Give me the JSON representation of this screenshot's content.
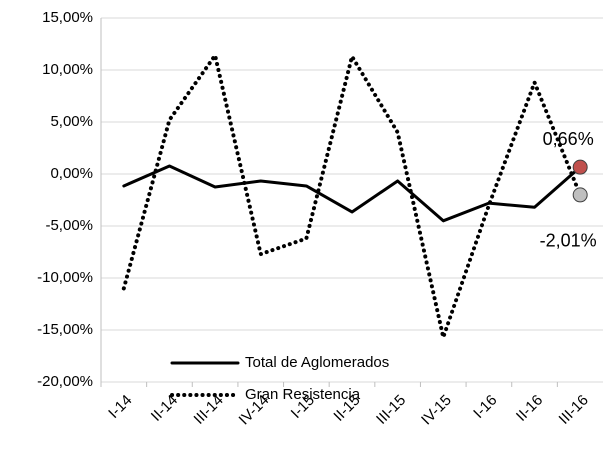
{
  "chart_data": {
    "type": "line",
    "categories": [
      "I-14",
      "II-14",
      "III-14",
      "IV-14",
      "I-15",
      "II-15",
      "III-15",
      "IV-15",
      "I-16",
      "II-16",
      "III-16"
    ],
    "series": [
      {
        "name": "Total de Aglomerados",
        "color": "#000000",
        "dash": "solid",
        "marker_color": "#c0504d",
        "values": [
          -1.15,
          0.77,
          -1.25,
          -0.67,
          -1.15,
          -3.65,
          -0.67,
          -4.5,
          -2.8,
          -3.2,
          0.66
        ],
        "value_labels": [
          null,
          null,
          null,
          null,
          null,
          null,
          null,
          null,
          null,
          null,
          "0,66%"
        ]
      },
      {
        "name": "Gran Resistencia",
        "color": "#000000",
        "dash": "dotted",
        "marker_color": "#bfbfbf",
        "values": [
          -11.0,
          5.2,
          11.4,
          -7.7,
          -6.2,
          11.3,
          4.0,
          -15.7,
          -3.0,
          8.8,
          -2.01
        ],
        "value_labels": [
          null,
          null,
          null,
          null,
          null,
          null,
          null,
          null,
          null,
          null,
          "-2,01%"
        ]
      }
    ],
    "ylim": [
      -20,
      15
    ],
    "yticks": [
      {
        "value": -20,
        "label": "-20,00%"
      },
      {
        "value": -15,
        "label": "-15,00%"
      },
      {
        "value": -10,
        "label": "-10,00%"
      },
      {
        "value": -5,
        "label": "-5,00%"
      },
      {
        "value": 0,
        "label": "0,00%"
      },
      {
        "value": 5,
        "label": "5,00%"
      },
      {
        "value": 10,
        "label": "10,00%"
      },
      {
        "value": 15,
        "label": "15,00%"
      }
    ],
    "grid": true,
    "legend": "lower-left"
  }
}
